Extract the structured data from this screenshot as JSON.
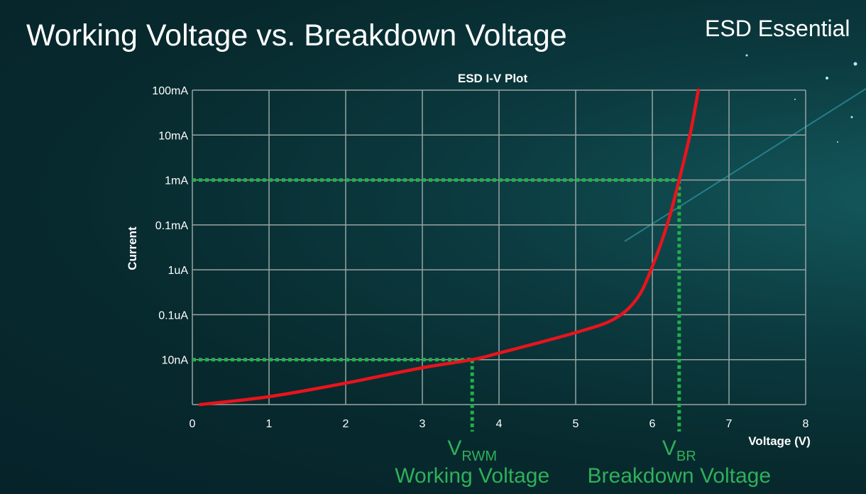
{
  "slide": {
    "title": "Working Voltage vs. Breakdown Voltage",
    "brand": "ESD Essential"
  },
  "colors": {
    "curve": "#e8141c",
    "marker": "#22b04b",
    "grid": "#9aa3a3",
    "annotation": "#2fb05a"
  },
  "chart_data": {
    "type": "line",
    "title": "ESD I-V Plot",
    "xlabel": "Voltage (V)",
    "ylabel": "Current",
    "xlim": [
      0,
      8
    ],
    "x_ticks": [
      "0",
      "1",
      "2",
      "3",
      "4",
      "5",
      "6",
      "7",
      "8"
    ],
    "y_scale": "log",
    "y_ticks": [
      {
        "label": "100mA",
        "value": 0.1
      },
      {
        "label": "10mA",
        "value": 0.01
      },
      {
        "label": "1mA",
        "value": 0.001
      },
      {
        "label": "0.1mA",
        "value": 0.0001
      },
      {
        "label": "1uA",
        "value": 1e-06
      },
      {
        "label": "0.1uA",
        "value": 1e-07
      },
      {
        "label": "10nA",
        "value": 1e-08
      }
    ],
    "y_min": 1e-09,
    "grid": true,
    "series": [
      {
        "x": [
          0.1,
          1,
          2,
          3,
          3.65,
          4,
          5,
          5.5,
          5.8,
          6,
          6.2,
          6.35,
          6.5,
          6.6
        ],
        "y": [
          1e-09,
          1.5e-09,
          3e-09,
          6.6e-09,
          1e-08,
          1.4e-08,
          4e-08,
          8e-08,
          2.3e-07,
          1.4e-06,
          0.00011,
          0.001,
          0.012,
          0.1
        ]
      }
    ],
    "markers": [
      {
        "name": "VRWM",
        "x": 3.65,
        "y": 1e-08,
        "symbol": "V",
        "subscript": "RWM",
        "label": "Working Voltage"
      },
      {
        "name": "VBR",
        "x": 6.35,
        "y": 0.001,
        "symbol": "V",
        "subscript": "BR",
        "label": "Breakdown Voltage"
      }
    ]
  }
}
